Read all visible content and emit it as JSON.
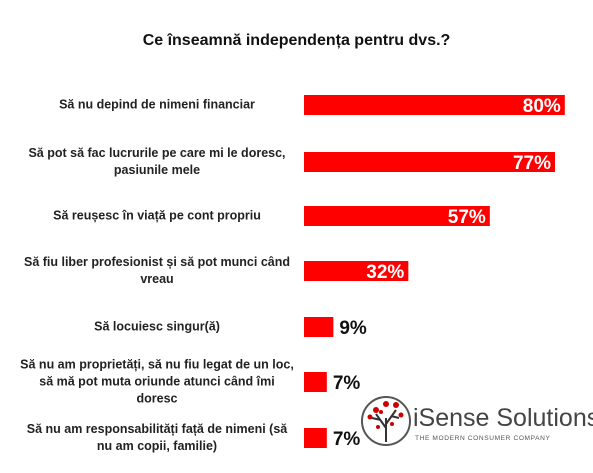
{
  "chart_data": {
    "type": "bar",
    "orientation": "horizontal",
    "title": "Ce înseamnă independența pentru dvs.?",
    "categories": [
      "Să nu depind de nimeni financiar",
      "Să pot să fac lucrurile pe care mi le doresc, pasiunile mele",
      "Să reușesc în viață pe cont propriu",
      "Să fiu liber profesionist și să pot munci când vreau",
      "Să locuiesc singur(ă)",
      "Să nu am proprietăți, să nu fiu legat de un loc, să mă pot muta oriunde atunci când îmi doresc",
      "Să nu am responsabilități față de nimeni (să nu am copii, familie)"
    ],
    "values": [
      80,
      77,
      57,
      32,
      9,
      7,
      7
    ],
    "value_labels": [
      "80%",
      "77%",
      "57%",
      "32%",
      "9%",
      "7%",
      "7%"
    ],
    "color": "#ff0000"
  },
  "logo": {
    "name": "iSense Solutions",
    "tagline": "THE MODERN CONSUMER COMPANY"
  }
}
